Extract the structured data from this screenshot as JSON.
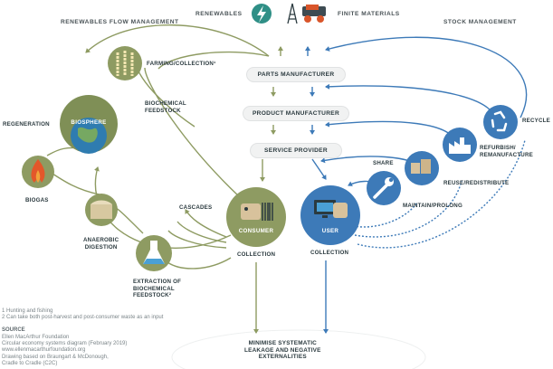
{
  "headers": {
    "renewables_flow": "RENEWABLES FLOW MANAGEMENT",
    "renewables": "RENEWABLES",
    "finite_materials": "FINITE MATERIALS",
    "stock_management": "STOCK MANAGEMENT"
  },
  "center": {
    "parts_manufacturer": "PARTS MANUFACTURER",
    "product_manufacturer": "PRODUCT MANUFACTURER",
    "service_provider": "SERVICE PROVIDER",
    "minimise": "MINIMISE SYSTEMATIC\nLEAKAGE AND NEGATIVE\nEXTERNALITIES"
  },
  "biological": {
    "farming": "FARMING/COLLECTION¹",
    "biochemical_feedstock": "BIOCHEMICAL\nFEEDSTOCK",
    "regeneration": "REGENERATION",
    "biosphere": "BIOSPHERE",
    "biogas": "BIOGAS",
    "anaerobic": "ANAEROBIC\nDIGESTION",
    "cascades": "CASCADES",
    "consumer": "CONSUMER",
    "collection": "COLLECTION",
    "extraction": "EXTRACTION OF\nBIOCHEMICAL\nFEEDSTOCK²"
  },
  "technical": {
    "recycle": "RECYCLE",
    "refurbish": "REFURBISH/\nREMANUFACTURE",
    "reuse": "REUSE/REDISTRIBUTE",
    "share": "SHARE",
    "maintain": "MAINTAIN/PROLONG",
    "user": "USER",
    "collection": "COLLECTION"
  },
  "footnotes": {
    "note1": "1 Hunting and fishing",
    "note2": "2 Can take both post-harvest and post-consumer waste as an input"
  },
  "source": {
    "title": "SOURCE",
    "lines": [
      "Ellen MacArthur Foundation",
      "Circular economy systems diagram (February 2019)",
      "www.ellenmacarthurfoundation.org",
      "Drawing based on Braungart & McDonough,",
      "Cradle to Cradle (C2C)"
    ]
  },
  "colors": {
    "bio_green": "#8e9b62",
    "bio_dark": "#5f6e3f",
    "tech_blue": "#3d7ab8",
    "tech_dark": "#2a5f96",
    "renew_teal": "#2f8f86",
    "box_gray": "#f1f2f2",
    "text_dark": "#2b3a3f"
  },
  "icons": [
    "lightning-icon",
    "oil-rig-icon",
    "mining-truck-icon",
    "fish-wheat-icon",
    "globe-icon",
    "flame-icon",
    "digester-icon",
    "flask-icon",
    "barcode-icon",
    "computer-icon",
    "wrench-icon",
    "boxes-icon",
    "factory-icon",
    "recycle-icon"
  ]
}
